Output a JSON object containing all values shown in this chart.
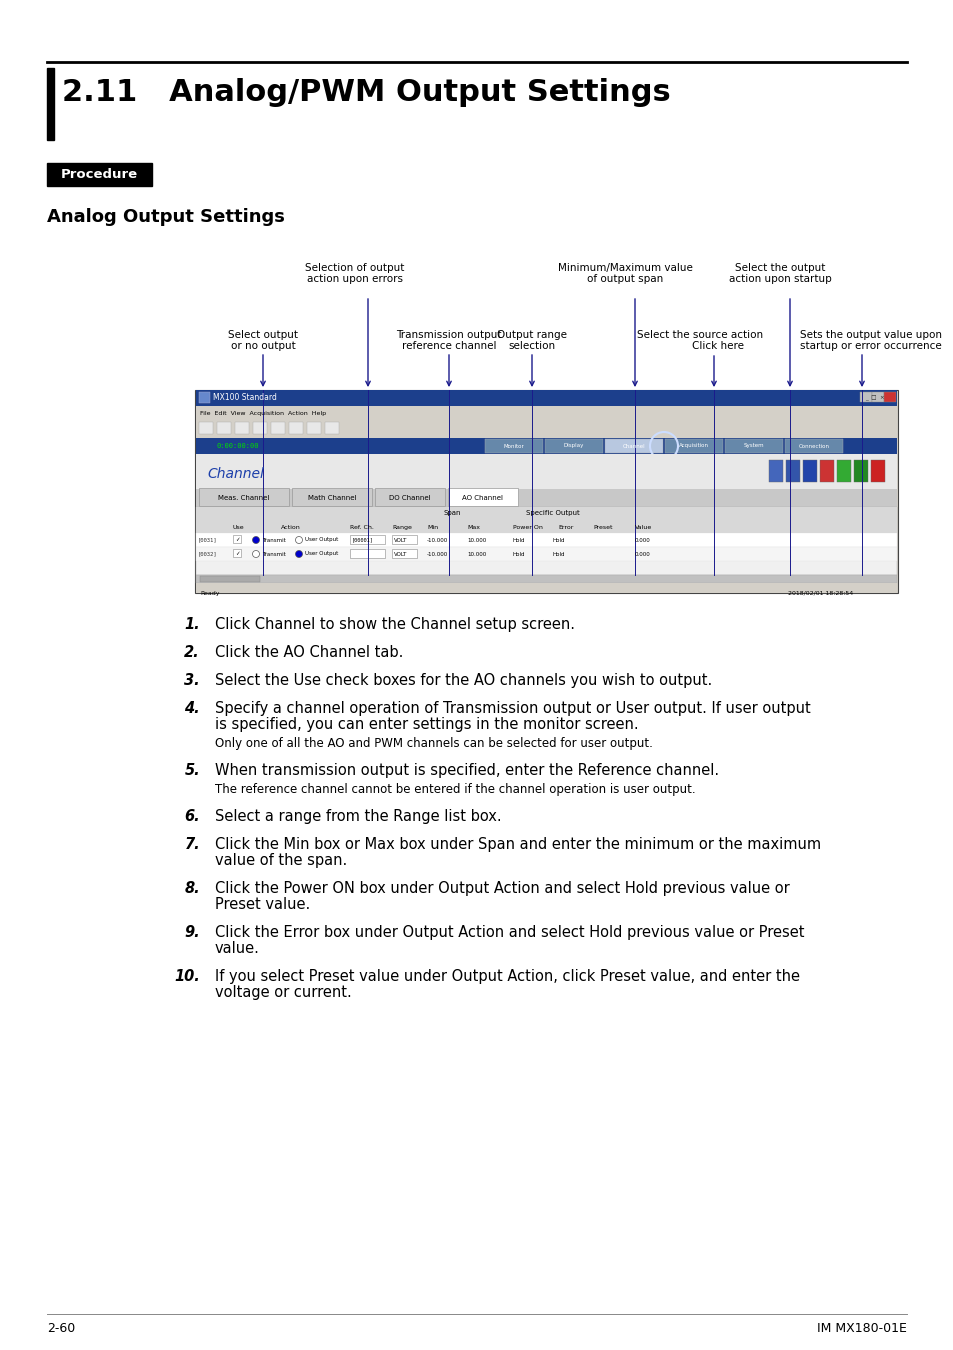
{
  "page_title": "2.11   Analog/PWM Output Settings",
  "section_label": "Procedure",
  "subsection_title": "Analog Output Settings",
  "steps": [
    {
      "num": "1.",
      "text": "Click Channel to show the Channel setup screen.",
      "sub": null
    },
    {
      "num": "2.",
      "text": "Click the AO Channel tab.",
      "sub": null
    },
    {
      "num": "3.",
      "text": "Select the Use check boxes for the AO channels you wish to output.",
      "sub": null
    },
    {
      "num": "4.",
      "text": "Specify a channel operation of Transmission output or User output. If user output\nis specified, you can enter settings in the monitor screen.",
      "sub": "Only one of all the AO and PWM channels can be selected for user output."
    },
    {
      "num": "5.",
      "text": "When transmission output is specified, enter the Reference channel.",
      "sub": "The reference channel cannot be entered if the channel operation is user output."
    },
    {
      "num": "6.",
      "text": "Select a range from the Range list box.",
      "sub": null
    },
    {
      "num": "7.",
      "text": "Click the Min box or Max box under Span and enter the minimum or the maximum\nvalue of the span.",
      "sub": null
    },
    {
      "num": "8.",
      "text": "Click the Power ON box under Output Action and select Hold previous value or\nPreset value.",
      "sub": null
    },
    {
      "num": "9.",
      "text": "Click the Error box under Output Action and select Hold previous value or Preset\nvalue.",
      "sub": null
    },
    {
      "num": "10.",
      "text": "If you select Preset value under Output Action, click Preset value, and enter the\nvoltage or current.",
      "sub": null
    }
  ],
  "footer_left": "2-60",
  "footer_right": "IM MX180-01E",
  "bg_color": "#ffffff",
  "ann_arrow_color": "#1a1a8c",
  "ann_font_size": 7.5,
  "step_font_size": 10.5,
  "sub_font_size": 8.5
}
